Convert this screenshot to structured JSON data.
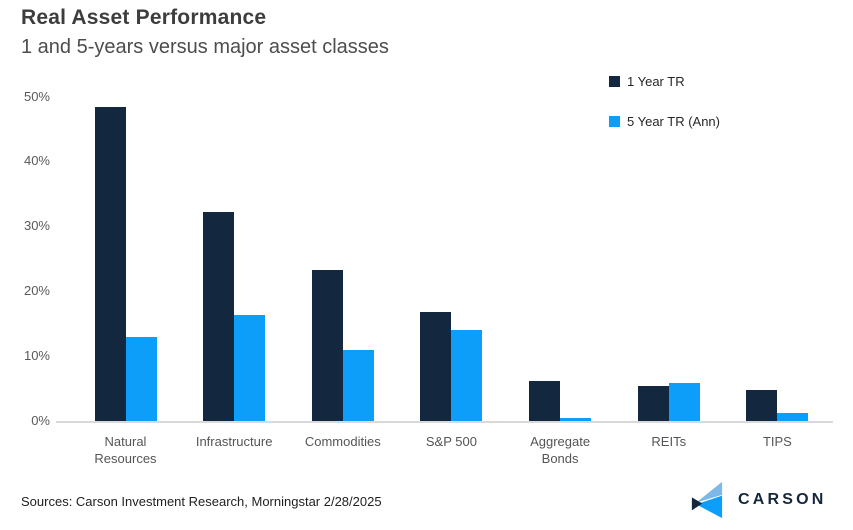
{
  "chart_data": {
    "type": "bar",
    "title": "Real Asset Performance",
    "subtitle": "1 and 5-years versus major asset classes",
    "categories": [
      "Natural Resources",
      "Infrastructure",
      "Commodities",
      "S&P 500",
      "Aggregate Bonds",
      "REITs",
      "TIPS"
    ],
    "series": [
      {
        "name": "1 Year TR",
        "color": "#13283f",
        "values": [
          48.4,
          32.2,
          23.2,
          16.8,
          6.1,
          5.4,
          4.7
        ]
      },
      {
        "name": "5 Year TR (Ann)",
        "color": "#0c9ef8",
        "values": [
          13.0,
          16.3,
          11.0,
          14.0,
          0.4,
          5.8,
          1.3
        ]
      }
    ],
    "xlabel": "",
    "ylabel": "",
    "ylim": [
      0,
      50
    ],
    "ytick_step": 10,
    "ytick_labels": [
      "0%",
      "10%",
      "20%",
      "30%",
      "40%",
      "50%"
    ],
    "grid": false,
    "legend_position": "top-right",
    "axis_line_color": "#d9d9d9"
  },
  "footer": {
    "source": "Sources: Carson Investment Research, Morningstar 2/28/2025",
    "logo_text": "CARSON"
  },
  "logo_colors": {
    "light_blue": "#7db9e8",
    "bright_blue": "#0c9ef8",
    "navy": "#14273c"
  }
}
